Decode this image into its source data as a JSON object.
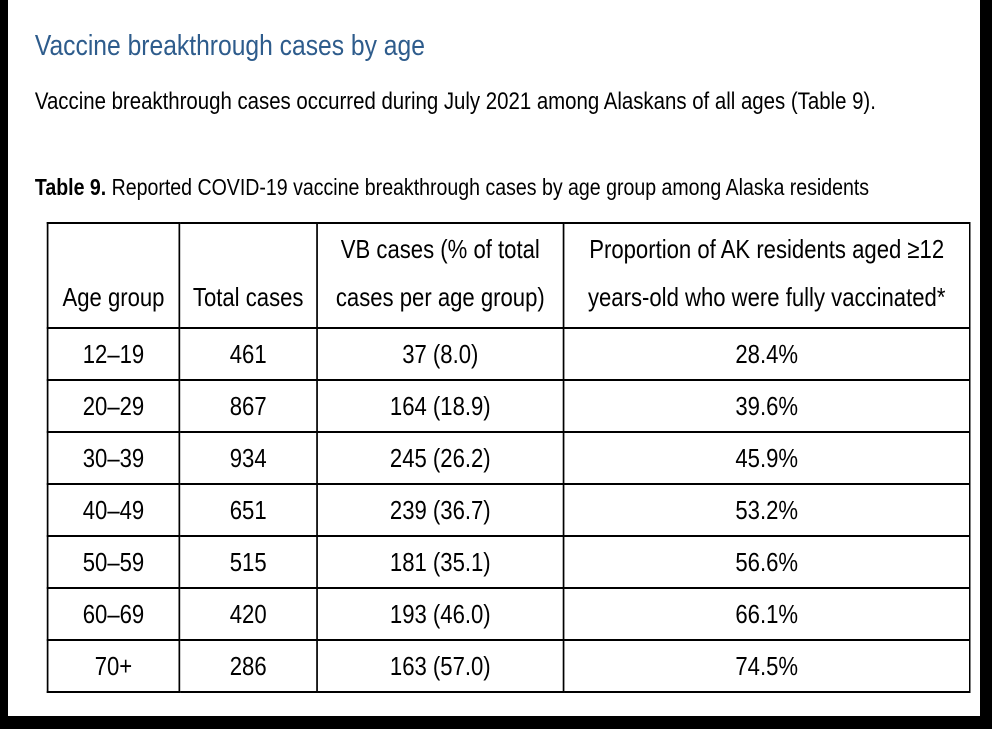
{
  "header": {
    "title": "Vaccine breakthrough cases by age",
    "subtitle": "Vaccine breakthrough cases occurred during July 2021 among Alaskans of all ages (Table 9)."
  },
  "table": {
    "caption_label": "Table 9.",
    "caption": "Reported COVID-19 vaccine breakthrough cases by age group among Alaska residents",
    "columns": [
      "Age group",
      "Total cases",
      "VB cases (% of total cases per age group)",
      "Proportion of AK residents aged ≥12 years-old who were fully vaccinated*"
    ],
    "rows": [
      [
        "12–19",
        "461",
        "37 (8.0)",
        "28.4%"
      ],
      [
        "20–29",
        "867",
        "164 (18.9)",
        "39.6%"
      ],
      [
        "30–39",
        "934",
        "245 (26.2)",
        "45.9%"
      ],
      [
        "40–49",
        "651",
        "239 (36.7)",
        "53.2%"
      ],
      [
        "50–59",
        "515",
        "181 (35.1)",
        "56.6%"
      ],
      [
        "60–69",
        "420",
        "193 (46.0)",
        "66.1%"
      ],
      [
        "70+",
        "286",
        "163 (57.0)",
        "74.5%"
      ]
    ]
  }
}
